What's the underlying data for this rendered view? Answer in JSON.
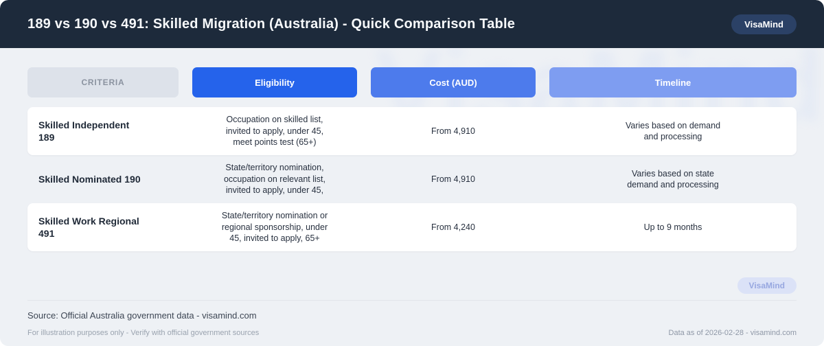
{
  "header": {
    "title": "189 vs 190 vs 491: Skilled Migration (Australia) - Quick Comparison Table",
    "brand": "VisaMind"
  },
  "watermark": "VisaMind",
  "table": {
    "columns": [
      {
        "label": "CRITERIA"
      },
      {
        "label": "Eligibility"
      },
      {
        "label": "Cost (AUD)"
      },
      {
        "label": "Timeline"
      }
    ],
    "rows": [
      {
        "criteria": "Skilled Independent\n189",
        "eligibility": "Occupation on skilled list,\ninvited to apply, under 45,\nmeet points test (65+)",
        "cost": "From 4,910",
        "timeline": "Varies based on demand\nand processing"
      },
      {
        "criteria": "Skilled Nominated 190",
        "eligibility": "State/territory nomination,\noccupation on relevant list,\ninvited to apply, under 45,",
        "cost": "From 4,910",
        "timeline": "Varies based on state\ndemand and processing"
      },
      {
        "criteria": "Skilled Work Regional\n491",
        "eligibility": "State/territory nomination or\nregional sponsorship, under\n45, invited to apply, 65+",
        "cost": "From 4,240",
        "timeline": "Up to 9 months"
      }
    ]
  },
  "footer": {
    "badge": "VisaMind",
    "source": "Source: Official Australia government data - visamind.com",
    "disclaimer": "For illustration purposes only - Verify with official government sources",
    "data_note": "Data as of 2026-02-28 - visamind.com"
  },
  "colors": {
    "header_bg": "#1d2a3b",
    "brand_badge_bg": "#2b4166",
    "accent_primary": "#2563eb",
    "accent_secondary": "#4d7bec",
    "accent_tertiary": "#7e9df1",
    "criteria_bg": "#dde2ea",
    "criteria_text": "#8b93a0",
    "page_bg": "#eef1f5",
    "card_bg": "#ffffff",
    "footer_badge_bg": "#dbe2f7",
    "footer_badge_text": "#97a7e0",
    "divider": "#e2e5ea",
    "source_text": "#3d4654",
    "muted_text": "#9aa3af",
    "note_text": "#8e97a6",
    "watermark": "#c9d6f4"
  }
}
